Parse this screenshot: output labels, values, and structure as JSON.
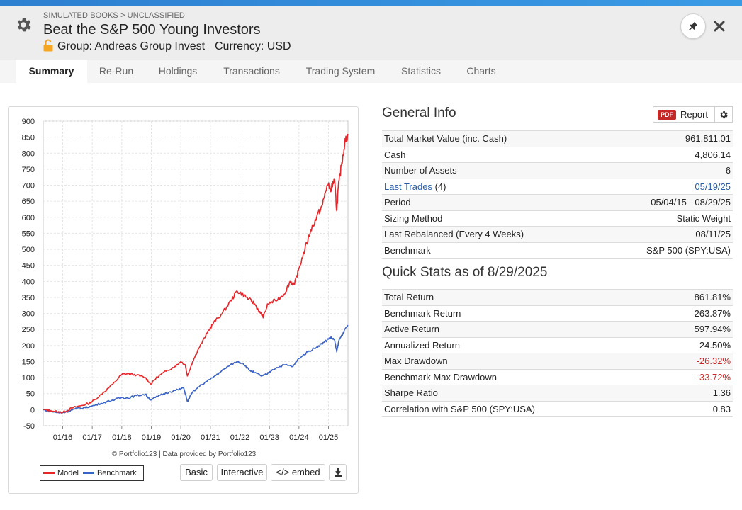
{
  "header": {
    "breadcrumb": "SIMULATED BOOKS > UNCLASSIFIED",
    "title": "Beat the S&P 500 Young Investors",
    "group": "Group: Andreas Group Invest",
    "currency": "Currency: USD"
  },
  "tabs": [
    "Summary",
    "Re-Run",
    "Holdings",
    "Transactions",
    "Trading System",
    "Statistics",
    "Charts"
  ],
  "chart": {
    "credit": "© Portfolio123 | Data provided by Portfolio123",
    "legend_model": "Model",
    "legend_benchmark": "Benchmark",
    "btn_basic": "Basic",
    "btn_interactive": "Interactive",
    "btn_embed": "</> embed"
  },
  "chart_data": {
    "type": "line",
    "y_ticks": [
      900,
      850,
      800,
      750,
      700,
      650,
      600,
      550,
      500,
      450,
      400,
      350,
      300,
      250,
      200,
      150,
      100,
      50,
      0,
      -50
    ],
    "x_ticks": [
      "01/16",
      "01/17",
      "01/18",
      "01/19",
      "01/20",
      "01/21",
      "01/22",
      "01/23",
      "01/24",
      "01/25"
    ],
    "ylim": [
      -50,
      900
    ],
    "xlim": [
      2015.34,
      2025.66
    ],
    "grid": true,
    "legend_position": "bottom-left",
    "series": [
      {
        "name": "Model",
        "color": "#e8262a",
        "points": [
          [
            2015.34,
            0
          ],
          [
            2015.6,
            -3
          ],
          [
            2015.9,
            -8
          ],
          [
            2016.1,
            -6
          ],
          [
            2016.3,
            5
          ],
          [
            2016.6,
            12
          ],
          [
            2016.9,
            20
          ],
          [
            2017.1,
            32
          ],
          [
            2017.4,
            55
          ],
          [
            2017.7,
            80
          ],
          [
            2018.0,
            110
          ],
          [
            2018.2,
            112
          ],
          [
            2018.5,
            108
          ],
          [
            2018.8,
            100
          ],
          [
            2018.98,
            80
          ],
          [
            2019.2,
            102
          ],
          [
            2019.5,
            120
          ],
          [
            2019.8,
            135
          ],
          [
            2020.0,
            150
          ],
          [
            2020.15,
            140
          ],
          [
            2020.22,
            105
          ],
          [
            2020.4,
            150
          ],
          [
            2020.6,
            190
          ],
          [
            2020.9,
            240
          ],
          [
            2021.1,
            270
          ],
          [
            2021.4,
            300
          ],
          [
            2021.7,
            340
          ],
          [
            2021.9,
            370
          ],
          [
            2022.1,
            360
          ],
          [
            2022.3,
            345
          ],
          [
            2022.5,
            330
          ],
          [
            2022.7,
            300
          ],
          [
            2022.8,
            290
          ],
          [
            2022.95,
            330
          ],
          [
            2023.2,
            340
          ],
          [
            2023.5,
            360
          ],
          [
            2023.7,
            400
          ],
          [
            2023.85,
            390
          ],
          [
            2024.0,
            440
          ],
          [
            2024.2,
            500
          ],
          [
            2024.4,
            560
          ],
          [
            2024.6,
            600
          ],
          [
            2024.8,
            640
          ],
          [
            2024.95,
            700
          ],
          [
            2025.1,
            690
          ],
          [
            2025.2,
            720
          ],
          [
            2025.28,
            620
          ],
          [
            2025.33,
            690
          ],
          [
            2025.45,
            770
          ],
          [
            2025.55,
            830
          ],
          [
            2025.66,
            860
          ]
        ]
      },
      {
        "name": "Benchmark",
        "color": "#3a63c7",
        "points": [
          [
            2015.34,
            0
          ],
          [
            2015.6,
            -5
          ],
          [
            2015.9,
            -10
          ],
          [
            2016.1,
            -7
          ],
          [
            2016.4,
            2
          ],
          [
            2016.7,
            6
          ],
          [
            2016.95,
            10
          ],
          [
            2017.3,
            20
          ],
          [
            2017.7,
            30
          ],
          [
            2018.0,
            38
          ],
          [
            2018.2,
            36
          ],
          [
            2018.5,
            44
          ],
          [
            2018.8,
            48
          ],
          [
            2018.98,
            30
          ],
          [
            2019.3,
            45
          ],
          [
            2019.6,
            55
          ],
          [
            2019.9,
            62
          ],
          [
            2020.1,
            68
          ],
          [
            2020.22,
            25
          ],
          [
            2020.4,
            55
          ],
          [
            2020.7,
            78
          ],
          [
            2021.0,
            95
          ],
          [
            2021.3,
            115
          ],
          [
            2021.6,
            135
          ],
          [
            2021.9,
            150
          ],
          [
            2022.1,
            145
          ],
          [
            2022.3,
            125
          ],
          [
            2022.5,
            115
          ],
          [
            2022.75,
            105
          ],
          [
            2022.9,
            110
          ],
          [
            2023.1,
            125
          ],
          [
            2023.5,
            140
          ],
          [
            2023.8,
            135
          ],
          [
            2024.0,
            160
          ],
          [
            2024.3,
            180
          ],
          [
            2024.6,
            195
          ],
          [
            2024.85,
            210
          ],
          [
            2025.05,
            225
          ],
          [
            2025.2,
            220
          ],
          [
            2025.28,
            180
          ],
          [
            2025.35,
            215
          ],
          [
            2025.5,
            240
          ],
          [
            2025.66,
            263
          ]
        ]
      }
    ]
  },
  "general_info": {
    "title": "General Info",
    "pdf_badge": "PDF",
    "report_label": "Report",
    "rows": [
      {
        "label": "Total Market Value (inc. Cash)",
        "value": "961,811.01"
      },
      {
        "label": "Cash",
        "value": "4,806.14"
      },
      {
        "label": "Number of Assets",
        "value": "6"
      },
      {
        "label": "Last Trades",
        "count": "(4)",
        "value": "05/19/25"
      },
      {
        "label": "Period",
        "value": "05/04/15 - 08/29/25"
      },
      {
        "label": "Sizing Method",
        "value": "Static Weight"
      },
      {
        "label": "Last Rebalanced (Every 4 Weeks)",
        "value": "08/11/25"
      },
      {
        "label": "Benchmark",
        "value": "S&P 500 (SPY:USA)"
      }
    ]
  },
  "quick_stats": {
    "title": "Quick Stats as of 8/29/2025",
    "rows": [
      {
        "label": "Total Return",
        "value": "861.81%"
      },
      {
        "label": "Benchmark Return",
        "value": "263.87%"
      },
      {
        "label": "Active Return",
        "value": "597.94%"
      },
      {
        "label": "Annualized Return",
        "value": "24.50%"
      },
      {
        "label": "Max Drawdown",
        "value": "-26.32%"
      },
      {
        "label": "Benchmark Max Drawdown",
        "value": "-33.72%"
      },
      {
        "label": "Sharpe Ratio",
        "value": "1.36"
      },
      {
        "label": "Correlation with S&P 500 (SPY:USA)",
        "value": "0.83"
      }
    ]
  },
  "colors": {
    "accent_bar": "#2d7fd0",
    "negative": "#c62828",
    "link": "#2a5ea8"
  }
}
